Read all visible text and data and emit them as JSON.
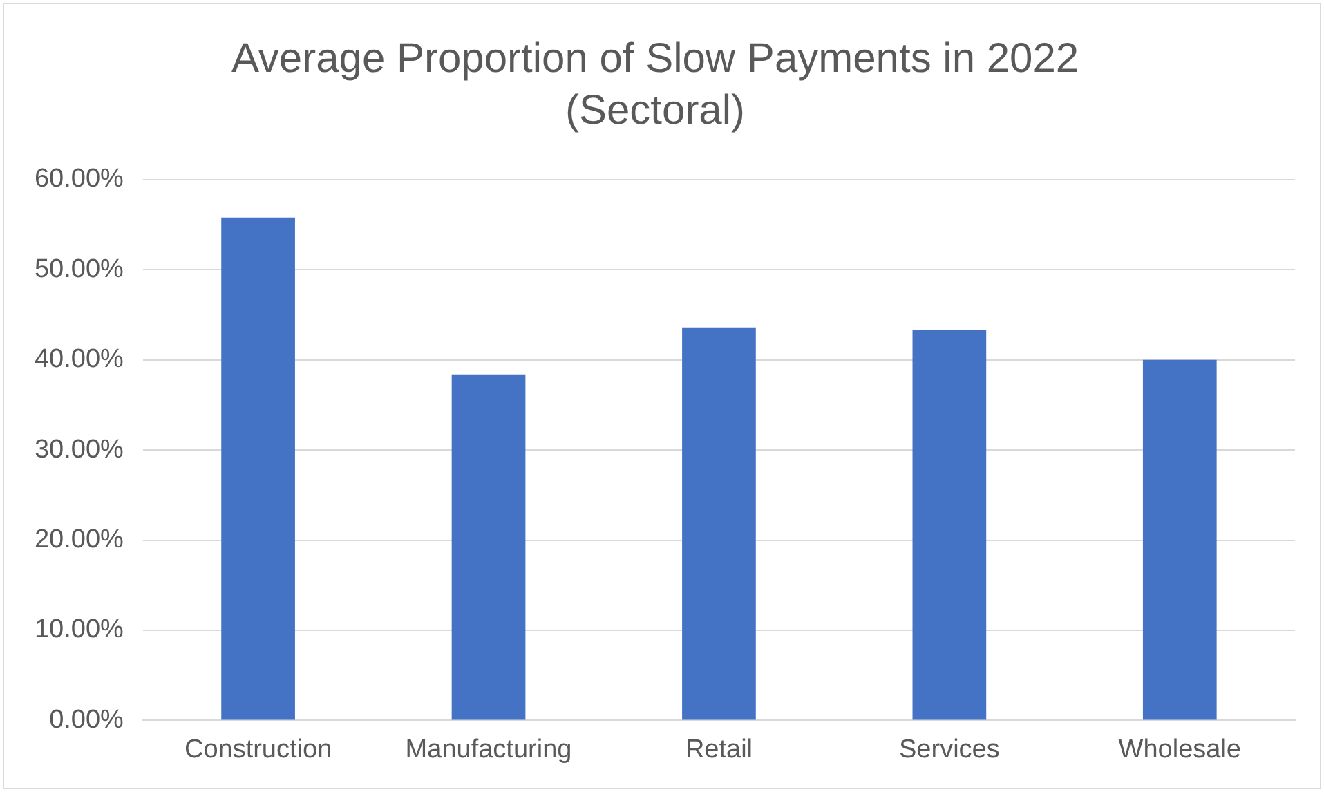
{
  "chart_data": {
    "type": "bar",
    "title": "Average Proportion of Slow Payments in 2022 (Sectoral)",
    "categories": [
      "Construction",
      "Manufacturing",
      "Retail",
      "Services",
      "Wholesale"
    ],
    "values": [
      55.8,
      38.4,
      43.6,
      43.3,
      40.0
    ],
    "color": "#4472c4",
    "ylim": [
      0,
      60
    ],
    "yticks": [
      {
        "value": 0,
        "label": "0.00%"
      },
      {
        "value": 10,
        "label": "10.00%"
      },
      {
        "value": 20,
        "label": "20.00%"
      },
      {
        "value": 30,
        "label": "30.00%"
      },
      {
        "value": 40,
        "label": "40.00%"
      },
      {
        "value": 50,
        "label": "50.00%"
      },
      {
        "value": 60,
        "label": "60.00%"
      }
    ],
    "grid": "y",
    "legend": false
  }
}
